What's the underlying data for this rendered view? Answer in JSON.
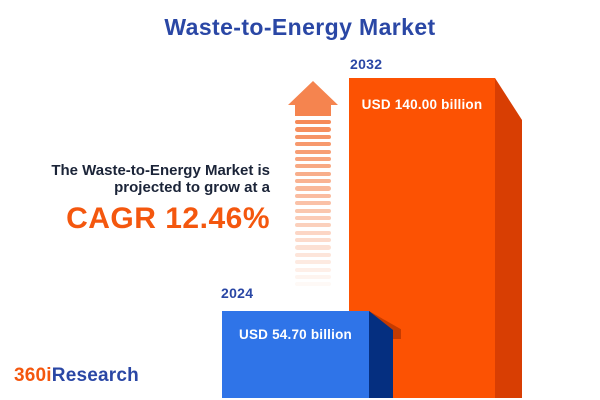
{
  "title": "Waste-to-Energy Market",
  "description": {
    "line1": "The Waste-to-Energy Market is",
    "line2": "projected to grow at a",
    "cagr": "CAGR 12.46%"
  },
  "chart": {
    "bars": [
      {
        "year": "2024",
        "value_label": "USD 54.70 billion"
      },
      {
        "year": "2032",
        "value_label": "USD 140.00 billion"
      }
    ]
  },
  "logo": {
    "prefix": "360i",
    "suffix": "Research"
  },
  "colors": {
    "navy": "#2A47A5",
    "text_dark": "#1B2438",
    "accent_orange": "#F4570E",
    "bar_blue": "#2F74E8",
    "bar_blue_side": "#052F80",
    "bar_orange": "#FC5203",
    "bar_orange_side": "#D83E03",
    "arrow_orange": "#F5844F",
    "label_white": "#FFFFFF"
  },
  "chart_data": {
    "type": "bar",
    "title": "Waste-to-Energy Market",
    "categories": [
      "2024",
      "2032"
    ],
    "values": [
      54.7,
      140.0
    ],
    "unit": "USD billion",
    "data_labels": [
      "USD 54.70 billion",
      "USD 140.00 billion"
    ],
    "series_colors": [
      "#2F74E8",
      "#FC5203"
    ],
    "annotations": [
      "The Waste-to-Energy Market is projected to grow at a CAGR 12.46%"
    ],
    "legend_position": "none",
    "grid": false,
    "axes_visible": false
  }
}
